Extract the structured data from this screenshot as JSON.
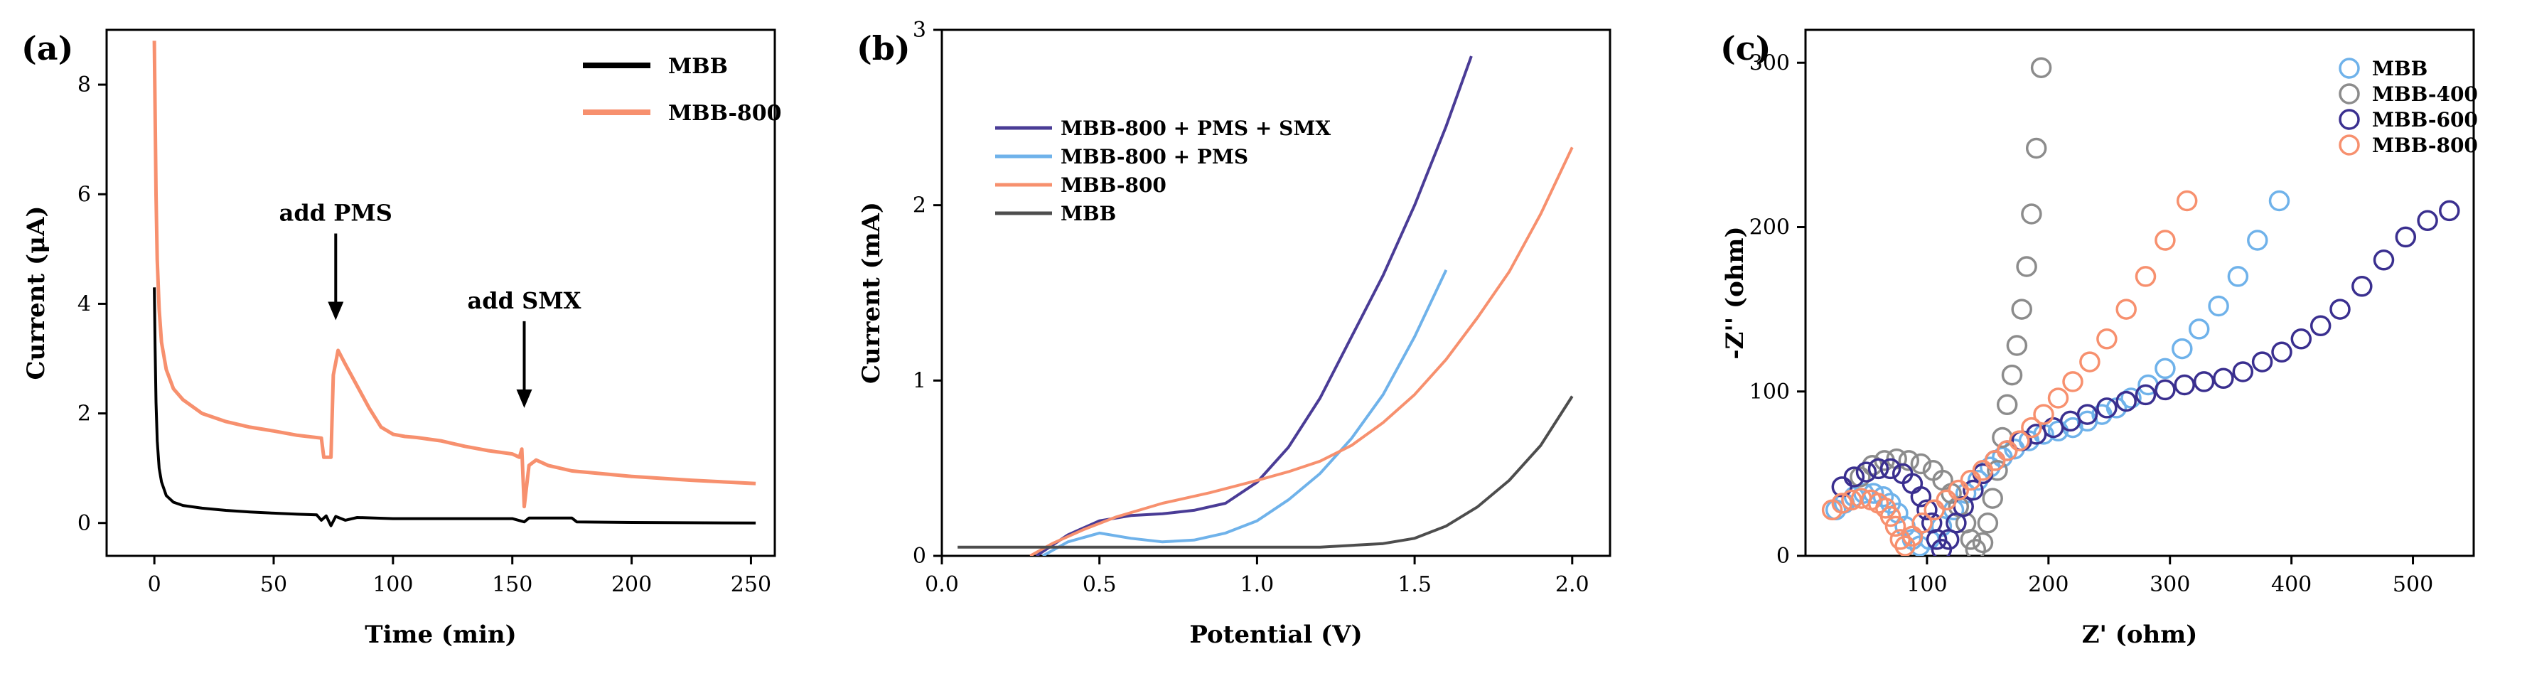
{
  "chart_data": [
    {
      "panel": "(a)",
      "type": "line",
      "xlabel": "Time (min)",
      "ylabel": "Current (μA)",
      "xlim": [
        -20,
        260
      ],
      "ylim": [
        -0.6,
        9.0
      ],
      "xticks": [
        0,
        50,
        100,
        150,
        200,
        250
      ],
      "yticks": [
        0,
        2,
        4,
        6,
        8
      ],
      "legend_position": "top-right",
      "annotations": [
        {
          "text": "add PMS",
          "x": 76,
          "y": 3.7
        },
        {
          "text": "add SMX",
          "x": 155,
          "y": 2.1
        }
      ],
      "series": [
        {
          "name": "MBB",
          "color": "#000000",
          "points": [
            [
              0,
              4.3
            ],
            [
              0.3,
              3.2
            ],
            [
              0.7,
              2.2
            ],
            [
              1.2,
              1.5
            ],
            [
              2,
              1.0
            ],
            [
              3,
              0.75
            ],
            [
              5,
              0.5
            ],
            [
              8,
              0.38
            ],
            [
              12,
              0.32
            ],
            [
              20,
              0.27
            ],
            [
              30,
              0.23
            ],
            [
              40,
              0.2
            ],
            [
              50,
              0.18
            ],
            [
              60,
              0.16
            ],
            [
              68,
              0.15
            ],
            [
              70,
              0.05
            ],
            [
              72,
              0.13
            ],
            [
              74,
              -0.05
            ],
            [
              76,
              0.12
            ],
            [
              80,
              0.05
            ],
            [
              85,
              0.1
            ],
            [
              100,
              0.08
            ],
            [
              120,
              0.08
            ],
            [
              150,
              0.08
            ],
            [
              155,
              0.02
            ],
            [
              157,
              0.09
            ],
            [
              175,
              0.09
            ],
            [
              177,
              0.02
            ],
            [
              200,
              0.01
            ],
            [
              252,
              0.0
            ]
          ]
        },
        {
          "name": "MBB-800",
          "color": "#f7906e",
          "points": [
            [
              0,
              8.8
            ],
            [
              0.3,
              7.5
            ],
            [
              0.7,
              6.0
            ],
            [
              1.2,
              4.8
            ],
            [
              2,
              3.9
            ],
            [
              3,
              3.3
            ],
            [
              5,
              2.8
            ],
            [
              8,
              2.45
            ],
            [
              12,
              2.25
            ],
            [
              20,
              2.0
            ],
            [
              30,
              1.85
            ],
            [
              40,
              1.75
            ],
            [
              50,
              1.68
            ],
            [
              60,
              1.6
            ],
            [
              70,
              1.55
            ],
            [
              71,
              1.2
            ],
            [
              74,
              1.2
            ],
            [
              75,
              2.7
            ],
            [
              77,
              3.15
            ],
            [
              80,
              2.9
            ],
            [
              90,
              2.1
            ],
            [
              95,
              1.75
            ],
            [
              100,
              1.62
            ],
            [
              105,
              1.58
            ],
            [
              110,
              1.56
            ],
            [
              120,
              1.5
            ],
            [
              130,
              1.4
            ],
            [
              140,
              1.32
            ],
            [
              150,
              1.26
            ],
            [
              153,
              1.2
            ],
            [
              154,
              1.35
            ],
            [
              155,
              0.3
            ],
            [
              157,
              1.05
            ],
            [
              160,
              1.15
            ],
            [
              165,
              1.05
            ],
            [
              175,
              0.95
            ],
            [
              200,
              0.85
            ],
            [
              225,
              0.78
            ],
            [
              252,
              0.72
            ]
          ]
        }
      ]
    },
    {
      "panel": "(b)",
      "type": "line",
      "xlabel": "Potential (V)",
      "ylabel": "Current (mA)",
      "xlim": [
        0.0,
        2.12
      ],
      "ylim": [
        0,
        3
      ],
      "xticks": [
        0.0,
        0.5,
        1.0,
        1.5,
        2.0
      ],
      "yticks": [
        0,
        1,
        2,
        3
      ],
      "legend_position": "top-left",
      "series": [
        {
          "name": "MBB-800 + PMS + SMX",
          "color": "#4a3c96",
          "points": [
            [
              0.3,
              0.0
            ],
            [
              0.35,
              0.06
            ],
            [
              0.4,
              0.12
            ],
            [
              0.5,
              0.2
            ],
            [
              0.6,
              0.23
            ],
            [
              0.7,
              0.24
            ],
            [
              0.8,
              0.26
            ],
            [
              0.9,
              0.3
            ],
            [
              1.0,
              0.42
            ],
            [
              1.1,
              0.62
            ],
            [
              1.2,
              0.9
            ],
            [
              1.3,
              1.25
            ],
            [
              1.4,
              1.6
            ],
            [
              1.5,
              2.0
            ],
            [
              1.6,
              2.45
            ],
            [
              1.68,
              2.85
            ]
          ]
        },
        {
          "name": "MBB-800 + PMS",
          "color": "#6fb2ea",
          "points": [
            [
              0.32,
              0.0
            ],
            [
              0.4,
              0.08
            ],
            [
              0.5,
              0.13
            ],
            [
              0.6,
              0.1
            ],
            [
              0.7,
              0.08
            ],
            [
              0.8,
              0.09
            ],
            [
              0.9,
              0.13
            ],
            [
              1.0,
              0.2
            ],
            [
              1.1,
              0.32
            ],
            [
              1.2,
              0.47
            ],
            [
              1.3,
              0.67
            ],
            [
              1.4,
              0.92
            ],
            [
              1.5,
              1.25
            ],
            [
              1.6,
              1.63
            ]
          ]
        },
        {
          "name": "MBB-800",
          "color": "#f7906e",
          "points": [
            [
              0.28,
              0.0
            ],
            [
              0.35,
              0.07
            ],
            [
              0.45,
              0.15
            ],
            [
              0.55,
              0.22
            ],
            [
              0.7,
              0.3
            ],
            [
              0.85,
              0.36
            ],
            [
              1.0,
              0.43
            ],
            [
              1.1,
              0.48
            ],
            [
              1.2,
              0.54
            ],
            [
              1.3,
              0.63
            ],
            [
              1.4,
              0.76
            ],
            [
              1.5,
              0.92
            ],
            [
              1.6,
              1.12
            ],
            [
              1.7,
              1.36
            ],
            [
              1.8,
              1.62
            ],
            [
              1.9,
              1.95
            ],
            [
              2.0,
              2.33
            ]
          ]
        },
        {
          "name": "MBB",
          "color": "#4d4d4d",
          "points": [
            [
              0.05,
              0.05
            ],
            [
              0.3,
              0.05
            ],
            [
              0.6,
              0.05
            ],
            [
              1.0,
              0.05
            ],
            [
              1.2,
              0.05
            ],
            [
              1.4,
              0.07
            ],
            [
              1.5,
              0.1
            ],
            [
              1.6,
              0.17
            ],
            [
              1.7,
              0.28
            ],
            [
              1.8,
              0.43
            ],
            [
              1.9,
              0.63
            ],
            [
              2.0,
              0.91
            ]
          ]
        }
      ]
    },
    {
      "panel": "(c)",
      "type": "scatter",
      "xlabel": "Z' (ohm)",
      "ylabel": "-Z'' (ohm)",
      "xlim": [
        0,
        550
      ],
      "ylim": [
        0,
        320
      ],
      "xticks": [
        100,
        200,
        300,
        400,
        500
      ],
      "yticks": [
        0,
        100,
        200,
        300
      ],
      "legend_position": "top-right",
      "series": [
        {
          "name": "MBB",
          "color": "#6fb2ea",
          "points": [
            [
              25,
              28
            ],
            [
              32,
              32
            ],
            [
              40,
              36
            ],
            [
              48,
              38
            ],
            [
              56,
              38
            ],
            [
              64,
              36
            ],
            [
              70,
              32
            ],
            [
              76,
              26
            ],
            [
              82,
              18
            ],
            [
              88,
              10
            ],
            [
              94,
              6
            ],
            [
              102,
              10
            ],
            [
              112,
              18
            ],
            [
              122,
              28
            ],
            [
              132,
              38
            ],
            [
              142,
              46
            ],
            [
              152,
              54
            ],
            [
              162,
              60
            ],
            [
              172,
              65
            ],
            [
              184,
              70
            ],
            [
              196,
              74
            ],
            [
              208,
              76
            ],
            [
              220,
              78
            ],
            [
              232,
              82
            ],
            [
              244,
              86
            ],
            [
              256,
              90
            ],
            [
              268,
              96
            ],
            [
              282,
              104
            ],
            [
              296,
              114
            ],
            [
              310,
              126
            ],
            [
              324,
              138
            ],
            [
              340,
              152
            ],
            [
              356,
              170
            ],
            [
              372,
              192
            ],
            [
              390,
              216
            ]
          ]
        },
        {
          "name": "MBB-400",
          "color": "#8c8c8c",
          "points": [
            [
              45,
              48
            ],
            [
              55,
              55
            ],
            [
              65,
              58
            ],
            [
              75,
              59
            ],
            [
              85,
              58
            ],
            [
              95,
              56
            ],
            [
              105,
              52
            ],
            [
              113,
              46
            ],
            [
              120,
              38
            ],
            [
              126,
              30
            ],
            [
              132,
              20
            ],
            [
              136,
              10
            ],
            [
              140,
              4
            ],
            [
              146,
              8
            ],
            [
              150,
              20
            ],
            [
              154,
              35
            ],
            [
              158,
              52
            ],
            [
              162,
              72
            ],
            [
              166,
              92
            ],
            [
              170,
              110
            ],
            [
              174,
              128
            ],
            [
              178,
              150
            ],
            [
              182,
              176
            ],
            [
              186,
              208
            ],
            [
              190,
              248
            ],
            [
              194,
              297
            ]
          ]
        },
        {
          "name": "MBB-600",
          "color": "#3a2f8f",
          "points": [
            [
              30,
              42
            ],
            [
              40,
              48
            ],
            [
              50,
              51
            ],
            [
              60,
              53
            ],
            [
              70,
              53
            ],
            [
              80,
              50
            ],
            [
              88,
              44
            ],
            [
              95,
              36
            ],
            [
              100,
              28
            ],
            [
              104,
              20
            ],
            [
              108,
              10
            ],
            [
              112,
              4
            ],
            [
              118,
              10
            ],
            [
              124,
              20
            ],
            [
              130,
              30
            ],
            [
              138,
              40
            ],
            [
              146,
              50
            ],
            [
              156,
              58
            ],
            [
              166,
              64
            ],
            [
              178,
              70
            ],
            [
              190,
              74
            ],
            [
              204,
              78
            ],
            [
              218,
              82
            ],
            [
              232,
              86
            ],
            [
              248,
              90
            ],
            [
              264,
              94
            ],
            [
              280,
              98
            ],
            [
              296,
              101
            ],
            [
              312,
              104
            ],
            [
              328,
              106
            ],
            [
              344,
              108
            ],
            [
              360,
              112
            ],
            [
              376,
              118
            ],
            [
              392,
              124
            ],
            [
              408,
              132
            ],
            [
              424,
              140
            ],
            [
              440,
              150
            ],
            [
              458,
              164
            ],
            [
              476,
              180
            ],
            [
              494,
              194
            ],
            [
              512,
              204
            ],
            [
              530,
              210
            ]
          ]
        },
        {
          "name": "MBB-800",
          "color": "#f7906e",
          "points": [
            [
              22,
              28
            ],
            [
              30,
              32
            ],
            [
              38,
              34
            ],
            [
              46,
              35
            ],
            [
              54,
              34
            ],
            [
              60,
              32
            ],
            [
              66,
              29
            ],
            [
              70,
              24
            ],
            [
              74,
              18
            ],
            [
              78,
              10
            ],
            [
              82,
              6
            ],
            [
              88,
              12
            ],
            [
              96,
              20
            ],
            [
              106,
              28
            ],
            [
              116,
              34
            ],
            [
              126,
              40
            ],
            [
              136,
              46
            ],
            [
              146,
              52
            ],
            [
              156,
              58
            ],
            [
              166,
              64
            ],
            [
              176,
              70
            ],
            [
              186,
              78
            ],
            [
              196,
              86
            ],
            [
              208,
              96
            ],
            [
              220,
              106
            ],
            [
              234,
              118
            ],
            [
              248,
              132
            ],
            [
              264,
              150
            ],
            [
              280,
              170
            ],
            [
              296,
              192
            ],
            [
              314,
              216
            ]
          ]
        }
      ]
    }
  ]
}
